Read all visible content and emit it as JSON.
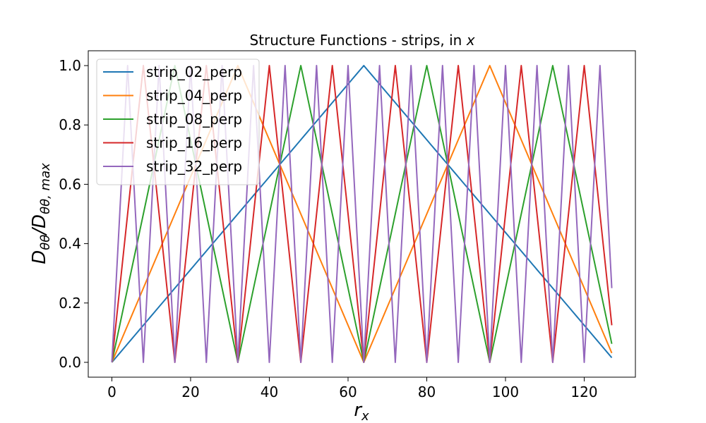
{
  "chart_data": {
    "type": "line",
    "title_main": "Structure Functions - strips, in ",
    "title_var": "x",
    "xlabel_base": "r",
    "xlabel_sub": "x",
    "ylabel_base": "D",
    "ylabel_sub1": "θθ",
    "ylabel_slash": "/",
    "ylabel_sub2": "θθ, max",
    "xlim": [
      -6,
      133
    ],
    "ylim": [
      -0.05,
      1.05
    ],
    "xticks": [
      0,
      20,
      40,
      60,
      80,
      100,
      120
    ],
    "xtick_labels": [
      "0",
      "20",
      "40",
      "60",
      "80",
      "100",
      "120"
    ],
    "yticks": [
      0.0,
      0.2,
      0.4,
      0.6,
      0.8,
      1.0
    ],
    "ytick_labels": [
      "0.0",
      "0.2",
      "0.4",
      "0.6",
      "0.8",
      "1.0"
    ],
    "legend_position": "top-left",
    "x_range": [
      0,
      127
    ],
    "series": [
      {
        "name": "strip_02_perp",
        "period": 128,
        "color": "#1f77b4"
      },
      {
        "name": "strip_04_perp",
        "period": 64,
        "color": "#ff7f0e"
      },
      {
        "name": "strip_08_perp",
        "period": 32,
        "color": "#2ca02c"
      },
      {
        "name": "strip_16_perp",
        "period": 16,
        "color": "#d62728"
      },
      {
        "name": "strip_32_perp",
        "period": 8,
        "color": "#9467bd"
      }
    ]
  }
}
